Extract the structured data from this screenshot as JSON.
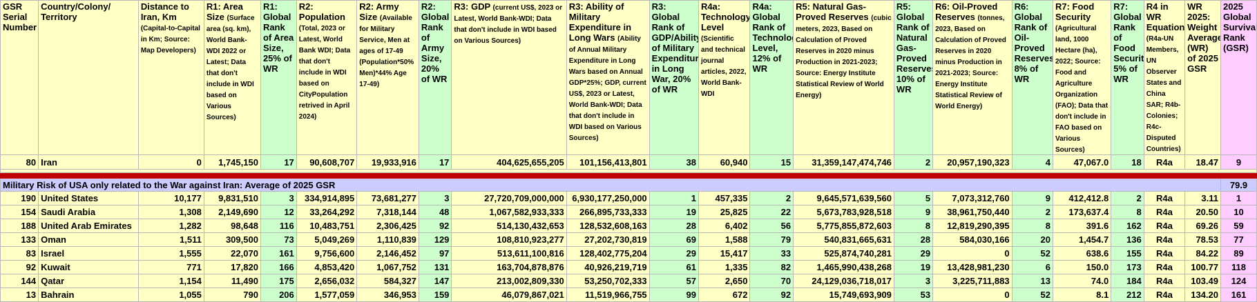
{
  "headers": {
    "serial": {
      "main": "GSR Serial Number",
      "sub": ""
    },
    "country": {
      "main": "Country/Colony/ Territory",
      "sub": ""
    },
    "distance": {
      "main": "Distance to Iran, Km",
      "sub": "(Capital-to-Capital in Km; Source: Map Developers)"
    },
    "area": {
      "main": "R1: Area Size",
      "sub": "(Surface area (sq. km), World Bank-WDI 2022 or Latest; Data that don't include in WDI based on Various Sources)"
    },
    "area_rank": {
      "main": "R1: Global Rank of Area Size, 25% of WR",
      "sub": ""
    },
    "population": {
      "main": "R2: Population",
      "sub": "(Total, 2023 or Latest, World Bank WDI; Data that don't include in WDI based on CityPopulation retrived in April 2024)"
    },
    "army": {
      "main": "R2: Army Size",
      "sub": "(Available for Military Service, Men at ages of 17-49 (Population*50% Men)*44% Age 17-49)"
    },
    "army_rank": {
      "main": "R2: Global Rank of Army Size, 20% of WR",
      "sub": ""
    },
    "gdp": {
      "main": "R3: GDP",
      "sub": "(current US$, 2023 or Latest, World Bank-WDI; Data that don't include in WDI based on Various Sources)"
    },
    "milexp": {
      "main": "R3: Ability of Military Expenditure in Long Wars",
      "sub": "(Ability of Annual Military Expenditure in Long Wars based on Annual GDP*25%; GDP, current US$, 2023 or Latest, World Bank-WDI; Data that don't include in WDI based on Various Sources)"
    },
    "gdp_rank": {
      "main": "R3: Global Rank of GDP/Ability of Military Expenditure in Long War, 20% of WR",
      "sub": ""
    },
    "tech": {
      "main": "R4a: Technology Level",
      "sub": "(Scientific and technical journal articles, 2022, World Bank-WDI"
    },
    "tech_rank": {
      "main": "R4a: Global Rank of Technology Level, 12% of WR",
      "sub": ""
    },
    "gas": {
      "main": "R5: Natural Gas-Proved Reserves",
      "sub": "(cubic meters, 2023, Based on Calculation of Proved Reserves in 2020 minus Production in 2021-2023; Source: Energy Institute Statistical Review of World Energy)"
    },
    "gas_rank": {
      "main": "R5: Global Rank of Natural Gas-Proved Reserves, 10% of WR",
      "sub": ""
    },
    "oil": {
      "main": "R6: Oil-Proved Reserves",
      "sub": "(tonnes, 2023, Based on Calculation of Proved Reserves in 2020 minus Production in 2021-2023; Source: Energy Institute Statistical Review of World Energy)"
    },
    "oil_rank": {
      "main": "R6: Global Rank of Oil-Proved Reserves, 8% of WR",
      "sub": ""
    },
    "food": {
      "main": "R7: Food Security",
      "sub": "(Agricultural land, 1000 Hectare (ha), 2022; Source: Food and Agriculture Organization (FAO); Data that don't include in FAO based on Various Sources)"
    },
    "food_rank": {
      "main": "R7: Global Rank of Food Security, 5% of WR",
      "sub": ""
    },
    "r4": {
      "main": "R4 in WR Equation",
      "sub": "(R4a-UN Members, UN Observer States and China SAR; R4b-Colonies; R4c-Disputed Countries)"
    },
    "wr": {
      "main": "WR 2025: Weight Average (WR) of 2025 GSR",
      "sub": ""
    },
    "gsr": {
      "main": "2025 Global Survival Rank (GSR)",
      "sub": ""
    }
  },
  "iran": [
    "80",
    "Iran",
    "0",
    "1,745,150",
    "17",
    "90,608,707",
    "19,933,916",
    "17",
    "404,625,655,205",
    "101,156,413,801",
    "38",
    "60,940",
    "15",
    "31,359,147,474,746",
    "2",
    "20,957,190,323",
    "4",
    "47,067.0",
    "18",
    "R4a",
    "18.47",
    "9"
  ],
  "section": {
    "title": "Military Risk of USA only related to the War against Iran: Average of 2025 GSR",
    "average": "79.9"
  },
  "rows": [
    [
      "190",
      "United States",
      "10,177",
      "9,831,510",
      "3",
      "334,914,895",
      "73,681,277",
      "3",
      "27,720,709,000,000",
      "6,930,177,250,000",
      "1",
      "457,335",
      "2",
      "9,645,571,639,560",
      "5",
      "7,073,312,760",
      "9",
      "412,412.8",
      "2",
      "R4a",
      "3.11",
      "1"
    ],
    [
      "154",
      "Saudi Arabia",
      "1,308",
      "2,149,690",
      "12",
      "33,264,292",
      "7,318,144",
      "48",
      "1,067,582,933,333",
      "266,895,733,333",
      "19",
      "25,825",
      "22",
      "5,673,783,928,518",
      "9",
      "38,961,750,440",
      "2",
      "173,637.4",
      "8",
      "R4a",
      "20.50",
      "10"
    ],
    [
      "188",
      "United Arab Emirates",
      "1,282",
      "98,648",
      "116",
      "10,483,751",
      "2,306,425",
      "92",
      "514,130,432,653",
      "128,532,608,163",
      "28",
      "6,402",
      "56",
      "5,775,855,872,603",
      "8",
      "12,819,290,395",
      "8",
      "391.6",
      "162",
      "R4a",
      "69.26",
      "59"
    ],
    [
      "133",
      "Oman",
      "1,511",
      "309,500",
      "73",
      "5,049,269",
      "1,110,839",
      "129",
      "108,810,923,277",
      "27,202,730,819",
      "69",
      "1,588",
      "79",
      "540,831,665,631",
      "28",
      "584,030,166",
      "20",
      "1,454.7",
      "136",
      "R4a",
      "78.53",
      "77"
    ],
    [
      "83",
      "Israel",
      "1,555",
      "22,070",
      "161",
      "9,756,600",
      "2,146,452",
      "97",
      "513,611,100,816",
      "128,402,775,204",
      "29",
      "15,417",
      "33",
      "525,874,740,281",
      "29",
      "0",
      "52",
      "638.6",
      "155",
      "R4a",
      "84.22",
      "89"
    ],
    [
      "92",
      "Kuwait",
      "771",
      "17,820",
      "166",
      "4,853,420",
      "1,067,752",
      "131",
      "163,704,878,876",
      "40,926,219,719",
      "61",
      "1,335",
      "82",
      "1,465,990,438,268",
      "19",
      "13,428,981,230",
      "6",
      "150.0",
      "173",
      "R4a",
      "100.77",
      "118"
    ],
    [
      "144",
      "Qatar",
      "1,154",
      "11,490",
      "175",
      "2,656,032",
      "584,327",
      "147",
      "213,002,809,330",
      "53,250,702,333",
      "57",
      "2,650",
      "70",
      "24,129,036,718,017",
      "3",
      "3,225,711,883",
      "13",
      "74.0",
      "184",
      "R4a",
      "103.49",
      "124"
    ],
    [
      "13",
      "Bahrain",
      "1,055",
      "790",
      "206",
      "1,577,059",
      "346,953",
      "159",
      "46,079,867,021",
      "11,519,966,755",
      "99",
      "672",
      "92",
      "15,749,693,909",
      "53",
      "0",
      "52",
      "8.1",
      "212",
      "R4a",
      "134.20",
      "161"
    ]
  ],
  "colors": {
    "header_yellow": "#ffffc6",
    "rank_green": "#ccffcc",
    "rank_pink": "#ffccff",
    "section_blue": "#ccccff",
    "divider_red": "#c00000"
  }
}
